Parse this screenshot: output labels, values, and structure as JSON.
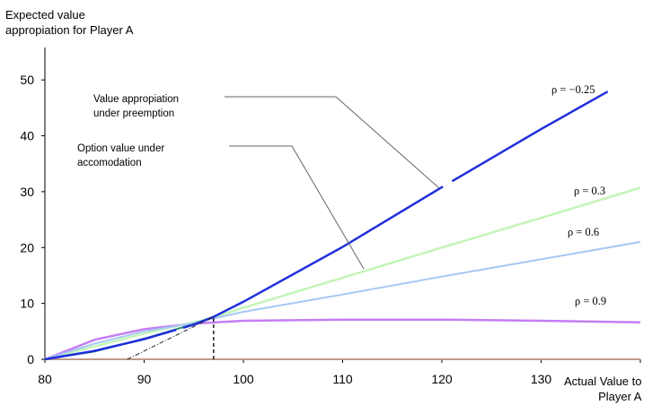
{
  "chart_data": {
    "type": "line",
    "ylabel": [
      "Expected value",
      "appropiation for Player A"
    ],
    "xlabel": [
      "Actual Value to",
      "Player A"
    ],
    "xlim": [
      80,
      140
    ],
    "ylim": [
      0,
      55
    ],
    "x_ticks": [
      80,
      90,
      100,
      110,
      120,
      130
    ],
    "y_ticks": [
      0,
      10,
      20,
      30,
      40,
      50
    ],
    "grid": false,
    "annotations": [
      {
        "text": [
          "Value appropiation",
          "under preemption"
        ]
      },
      {
        "text": [
          "Option value under",
          "accomodation"
        ]
      }
    ],
    "series": [
      {
        "name": "ρ = −0.25",
        "color": "#1f2fdc",
        "x": [
          80,
          85,
          90,
          95,
          97,
          100,
          110,
          120,
          130,
          140
        ],
        "y": [
          0,
          1.5,
          3.6,
          6.2,
          7.6,
          10.3,
          20.1,
          30.8,
          41.2,
          51.2
        ]
      },
      {
        "name": "ρ = 0.3",
        "color": "#c4f4b9",
        "x": [
          80,
          85,
          90,
          95,
          97,
          100,
          110,
          120,
          130,
          140
        ],
        "y": [
          0,
          2.3,
          4.6,
          6.6,
          7.5,
          9.2,
          14.6,
          20.0,
          25.3,
          30.7
        ]
      },
      {
        "name": "ρ = 0.6",
        "color": "#a5c8f4",
        "x": [
          80,
          85,
          90,
          95,
          97,
          100,
          110,
          120,
          130,
          140
        ],
        "y": [
          0,
          2.8,
          5.0,
          6.5,
          7.3,
          8.5,
          11.6,
          14.8,
          17.9,
          21.0
        ]
      },
      {
        "name": "ρ = 0.9",
        "color": "#c47ef4",
        "x": [
          80,
          85,
          90,
          95,
          100,
          110,
          120,
          130,
          140
        ],
        "y": [
          0,
          3.5,
          5.4,
          6.4,
          6.9,
          7.1,
          7.1,
          6.9,
          6.6
        ]
      },
      {
        "name": "",
        "color": "#2e8b6a",
        "x": [
          80,
          85,
          90,
          95,
          97
        ],
        "y": [
          0,
          1.4,
          3.7,
          6.3,
          7.6
        ]
      }
    ],
    "zero_line_color": "#c39a8a",
    "tangent_line": {
      "x": [
        88.3,
        97
      ],
      "y": [
        0,
        7.6
      ]
    },
    "vertical_marker": {
      "x": 97,
      "y": [
        0,
        7.6
      ]
    }
  }
}
